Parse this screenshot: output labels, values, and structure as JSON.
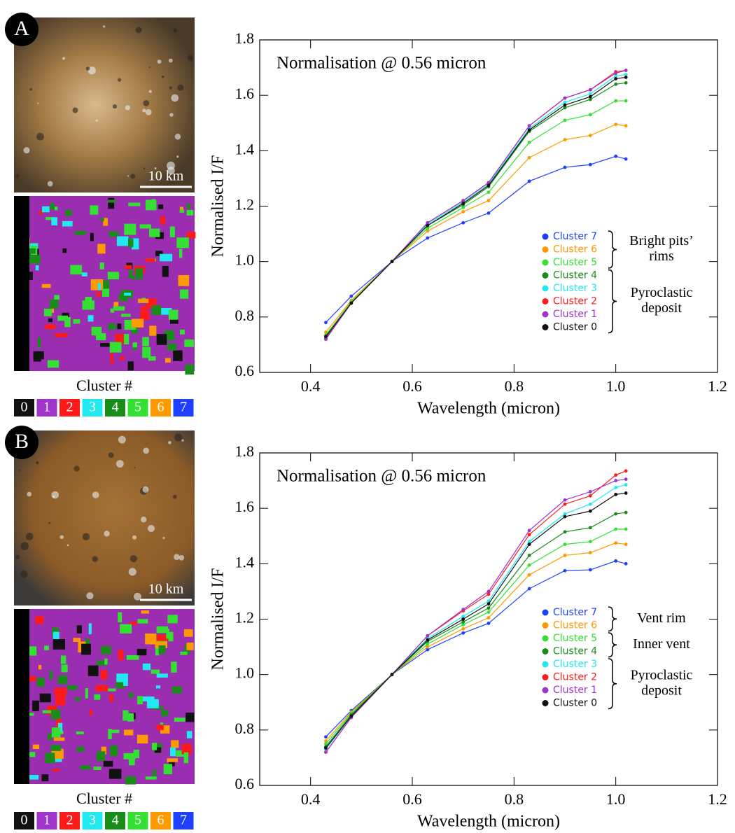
{
  "panels": [
    {
      "label": "A",
      "scale_bar": "10 km",
      "cluster_title": "Cluster #",
      "cluster_labels": [
        "0",
        "1",
        "2",
        "3",
        "4",
        "5",
        "6",
        "7"
      ]
    },
    {
      "label": "B",
      "scale_bar": "10 km",
      "cluster_title": "Cluster #",
      "cluster_labels": [
        "0",
        "1",
        "2",
        "3",
        "4",
        "5",
        "6",
        "7"
      ]
    }
  ],
  "chart_data": [
    {
      "type": "line",
      "annotation": "Normalisation @ 0.56 micron",
      "xlabel": "Wavelength (micron)",
      "ylabel": "Normalised I/F",
      "x": [
        0.43,
        0.48,
        0.56,
        0.63,
        0.7,
        0.75,
        0.83,
        0.9,
        0.95,
        1.0,
        1.02
      ],
      "xlim": [
        0.3,
        1.2
      ],
      "xticks": [
        0.4,
        0.6,
        0.8,
        {
          "value": 1,
          "label": "1.0"
        },
        1.2
      ],
      "ylim": [
        0.6,
        1.8
      ],
      "yticks": [
        0.6,
        0.8,
        {
          "value": 1,
          "label": "1.0"
        },
        1.2,
        1.4,
        1.6,
        1.8
      ],
      "series": [
        {
          "name": "Cluster 7",
          "color": "#1f3fff",
          "values": [
            0.78,
            0.875,
            1.0,
            1.085,
            1.14,
            1.175,
            1.29,
            1.34,
            1.35,
            1.38,
            1.37
          ]
        },
        {
          "name": "Cluster 6",
          "color": "#ff9900",
          "values": [
            0.745,
            0.86,
            1.0,
            1.11,
            1.18,
            1.22,
            1.375,
            1.44,
            1.455,
            1.495,
            1.49
          ]
        },
        {
          "name": "Cluster 5",
          "color": "#33e033",
          "values": [
            0.735,
            0.855,
            1.0,
            1.12,
            1.195,
            1.25,
            1.43,
            1.51,
            1.53,
            1.58,
            1.58
          ]
        },
        {
          "name": "Cluster 4",
          "color": "#1a8c1a",
          "values": [
            0.725,
            0.85,
            1.0,
            1.13,
            1.205,
            1.27,
            1.47,
            1.555,
            1.585,
            1.64,
            1.645
          ]
        },
        {
          "name": "Cluster 3",
          "color": "#22e8f0",
          "values": [
            0.72,
            0.85,
            1.0,
            1.135,
            1.215,
            1.28,
            1.48,
            1.575,
            1.605,
            1.67,
            1.675
          ]
        },
        {
          "name": "Cluster 2",
          "color": "#ff1a1a",
          "values": [
            0.72,
            0.85,
            1.0,
            1.14,
            1.22,
            1.285,
            1.49,
            1.59,
            1.62,
            1.685,
            1.69
          ]
        },
        {
          "name": "Cluster 1",
          "color": "#a033cc",
          "values": [
            0.72,
            0.85,
            1.0,
            1.14,
            1.22,
            1.285,
            1.49,
            1.59,
            1.62,
            1.68,
            1.69
          ]
        },
        {
          "name": "Cluster 0",
          "color": "#111111",
          "values": [
            0.73,
            0.85,
            1.0,
            1.13,
            1.21,
            1.275,
            1.475,
            1.565,
            1.595,
            1.66,
            1.665
          ]
        }
      ],
      "groups": [
        {
          "label": [
            "Bright pits’",
            "rims"
          ]
        },
        {
          "label": [
            "Pyroclastic",
            "deposit"
          ]
        }
      ]
    },
    {
      "type": "line",
      "annotation": "Normalisation @ 0.56 micron",
      "xlabel": "Wavelength (micron)",
      "ylabel": "Normalised I/F",
      "x": [
        0.43,
        0.48,
        0.56,
        0.63,
        0.7,
        0.75,
        0.83,
        0.9,
        0.95,
        1.0,
        1.02
      ],
      "xlim": [
        0.3,
        1.2
      ],
      "xticks": [
        0.4,
        0.6,
        0.8,
        {
          "value": 1,
          "label": "1.0"
        },
        1.2
      ],
      "ylim": [
        0.6,
        1.8
      ],
      "yticks": [
        0.6,
        0.8,
        {
          "value": 1,
          "label": "1.0"
        },
        1.2,
        1.4,
        1.6,
        1.8
      ],
      "series": [
        {
          "name": "Cluster 7",
          "color": "#1f3fff",
          "values": [
            0.775,
            0.87,
            1.0,
            1.09,
            1.15,
            1.185,
            1.31,
            1.375,
            1.378,
            1.41,
            1.4
          ]
        },
        {
          "name": "Cluster 6",
          "color": "#ff9900",
          "values": [
            0.76,
            0.865,
            1.0,
            1.1,
            1.165,
            1.205,
            1.36,
            1.43,
            1.44,
            1.475,
            1.47
          ]
        },
        {
          "name": "Cluster 5",
          "color": "#33e033",
          "values": [
            0.75,
            0.86,
            1.0,
            1.11,
            1.18,
            1.225,
            1.395,
            1.47,
            1.48,
            1.525,
            1.525
          ]
        },
        {
          "name": "Cluster 4",
          "color": "#1a8c1a",
          "values": [
            0.74,
            0.855,
            1.0,
            1.12,
            1.19,
            1.24,
            1.43,
            1.515,
            1.53,
            1.58,
            1.585
          ]
        },
        {
          "name": "Cluster 3",
          "color": "#22e8f0",
          "values": [
            0.73,
            0.85,
            1.0,
            1.13,
            1.21,
            1.265,
            1.48,
            1.58,
            1.615,
            1.675,
            1.685
          ]
        },
        {
          "name": "Cluster 2",
          "color": "#ff1a1a",
          "values": [
            0.72,
            0.845,
            1.0,
            1.14,
            1.23,
            1.29,
            1.505,
            1.615,
            1.645,
            1.72,
            1.735
          ]
        },
        {
          "name": "Cluster 1",
          "color": "#a033cc",
          "values": [
            0.72,
            0.845,
            1.0,
            1.14,
            1.235,
            1.3,
            1.52,
            1.63,
            1.66,
            1.7,
            1.705
          ]
        },
        {
          "name": "Cluster 0",
          "color": "#111111",
          "values": [
            0.735,
            0.85,
            1.0,
            1.125,
            1.2,
            1.255,
            1.47,
            1.57,
            1.59,
            1.65,
            1.655
          ]
        }
      ],
      "groups": [
        {
          "label": [
            "Vent rim"
          ]
        },
        {
          "label": [
            "Inner vent"
          ]
        },
        {
          "label": [
            "Pyroclastic",
            "deposit"
          ]
        }
      ]
    }
  ]
}
